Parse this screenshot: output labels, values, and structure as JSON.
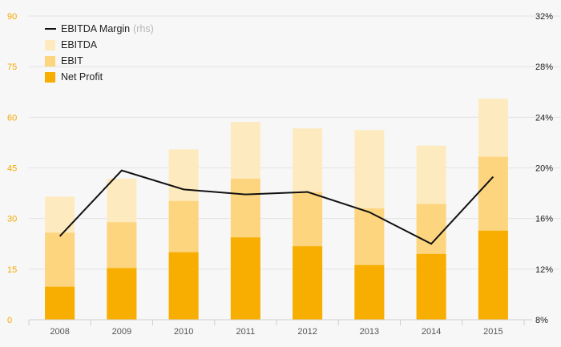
{
  "chart_data": {
    "type": "bar",
    "subtype": "overlapping-bars-with-line",
    "categories": [
      "2008",
      "2009",
      "2010",
      "2011",
      "2012",
      "2013",
      "2014",
      "2015"
    ],
    "series": [
      {
        "name": "EBITDA",
        "kind": "bar",
        "axis": "left",
        "color": "#feeabf",
        "values": [
          36.5,
          41.8,
          50.5,
          58.6,
          56.7,
          56.2,
          51.6,
          65.5
        ]
      },
      {
        "name": "EBIT",
        "kind": "bar",
        "axis": "left",
        "color": "#fdd57f",
        "values": [
          25.8,
          28.9,
          35.2,
          41.8,
          37.8,
          33.0,
          34.3,
          48.3
        ]
      },
      {
        "name": "Net Profit",
        "kind": "bar",
        "axis": "left",
        "color": "#f7ae00",
        "values": [
          9.8,
          15.3,
          20.0,
          24.4,
          21.8,
          16.2,
          19.5,
          26.4
        ]
      },
      {
        "name": "EBITDA Margin",
        "name_suffix": "(rhs)",
        "kind": "line",
        "axis": "right",
        "color": "#111111",
        "values": [
          14.6,
          19.8,
          18.3,
          17.9,
          18.1,
          16.5,
          14.0,
          19.3
        ]
      }
    ],
    "yaxis_left": {
      "min": 0,
      "max": 90,
      "ticks": [
        0,
        15,
        30,
        45,
        60,
        75,
        90
      ]
    },
    "yaxis_right": {
      "min": 8,
      "max": 32,
      "ticks": [
        8,
        12,
        16,
        20,
        24,
        28,
        32
      ],
      "format": "%"
    },
    "grid": true,
    "legend_position": "top-left",
    "title": "",
    "xlabel": "",
    "ylabel": ""
  }
}
